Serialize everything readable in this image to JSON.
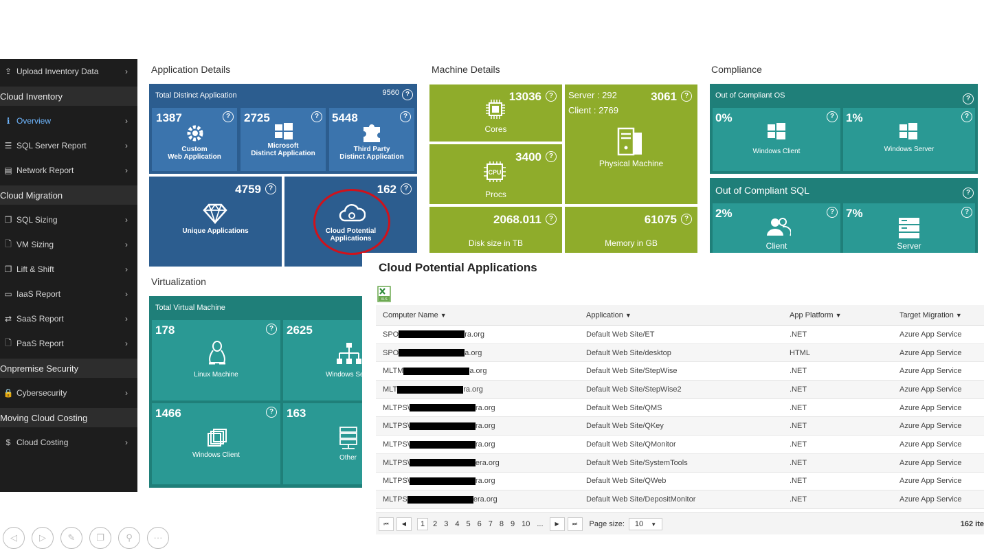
{
  "sidebar": {
    "items": [
      {
        "type": "item",
        "label": "Upload Inventory Data",
        "icon": "upload-icon"
      },
      {
        "type": "section",
        "label": "Cloud Inventory"
      },
      {
        "type": "item",
        "label": "Overview",
        "icon": "info-icon",
        "active": true
      },
      {
        "type": "item",
        "label": "SQL Server Report",
        "icon": "database-icon"
      },
      {
        "type": "item",
        "label": "Network Report",
        "icon": "network-icon"
      },
      {
        "type": "section",
        "label": "Cloud Migration"
      },
      {
        "type": "item",
        "label": "SQL Sizing",
        "icon": "copy-icon"
      },
      {
        "type": "item",
        "label": "VM Sizing",
        "icon": "file-icon"
      },
      {
        "type": "item",
        "label": "Lift & Shift",
        "icon": "copy-icon"
      },
      {
        "type": "item",
        "label": "IaaS Report",
        "icon": "monitor-icon"
      },
      {
        "type": "item",
        "label": "SaaS Report",
        "icon": "exchange-icon"
      },
      {
        "type": "item",
        "label": "PaaS Report",
        "icon": "file-icon"
      },
      {
        "type": "section",
        "label": "Onpremise Security"
      },
      {
        "type": "item",
        "label": "Cybersecurity",
        "icon": "lock-icon"
      },
      {
        "type": "section",
        "label": "Moving Cloud Costing"
      },
      {
        "type": "item",
        "label": "Cloud Costing",
        "icon": "dollar-icon"
      }
    ]
  },
  "app_details": {
    "title": "Application Details",
    "total_label": "Total Distinct Application",
    "total_value": "9560",
    "custom": {
      "value": "1387",
      "label1": "Custom",
      "label2": "Web Application"
    },
    "microsoft": {
      "value": "2725",
      "label1": "Microsoft",
      "label2": "Distinct Application"
    },
    "third_party": {
      "value": "5448",
      "label1": "Third Party",
      "label2": "Distinct Application"
    },
    "unique": {
      "value": "4759",
      "label": "Unique Applications"
    },
    "cloud_potential": {
      "value": "162",
      "label1": "Cloud Potential",
      "label2": "Applications"
    }
  },
  "machine_details": {
    "title": "Machine Details",
    "cores": {
      "value": "13036",
      "label": "Cores"
    },
    "procs": {
      "value": "3400",
      "label": "Procs",
      "chip": "CPU"
    },
    "physical": {
      "value": "3061",
      "server": "Server : 292",
      "client": "Client : 2769",
      "label": "Physical Machine"
    },
    "disk": {
      "value": "2068.011",
      "label": "Disk size in TB"
    },
    "memory": {
      "value": "61075",
      "label": "Memory in GB"
    }
  },
  "compliance": {
    "title": "Compliance",
    "os_label": "Out of Compliant OS",
    "os_client": {
      "value": "0%",
      "label": "Windows Client"
    },
    "os_server": {
      "value": "1%",
      "label": "Windows Server"
    },
    "sql_label": "Out of Compliant SQL",
    "sql_client": {
      "value": "2%",
      "label": "Client"
    },
    "sql_server": {
      "value": "7%",
      "label": "Server"
    }
  },
  "virtualization": {
    "title": "Virtualization",
    "total_label": "Total Virtual Machine",
    "linux": {
      "value": "178",
      "label": "Linux Machine"
    },
    "windows_server": {
      "value": "2625",
      "label": "Windows Se"
    },
    "windows_client": {
      "value": "1466",
      "label": "Windows Client"
    },
    "other": {
      "value": "163",
      "label": "Other"
    }
  },
  "popup": {
    "title": "Cloud Potential Applications",
    "columns": [
      "Computer Name",
      "Application",
      "App Platform",
      "Target Migration"
    ],
    "rows": [
      {
        "cn_pre": "SPO",
        "cn_post": "ra.org",
        "app": "Default Web Site/ET",
        "platform": ".NET",
        "target": "Azure App Service"
      },
      {
        "cn_pre": "SPO",
        "cn_post": "a.org",
        "app": "Default Web Site/desktop",
        "platform": "HTML",
        "target": "Azure App Service"
      },
      {
        "cn_pre": "MLTM",
        "cn_post": "a.org",
        "app": "Default Web Site/StepWise",
        "platform": ".NET",
        "target": "Azure App Service"
      },
      {
        "cn_pre": "MLT",
        "cn_post": "ra.org",
        "app": "Default Web Site/StepWise2",
        "platform": ".NET",
        "target": "Azure App Service"
      },
      {
        "cn_pre": "MLTPS\\",
        "cn_post": "ra.org",
        "app": "Default Web Site/QMS",
        "platform": ".NET",
        "target": "Azure App Service"
      },
      {
        "cn_pre": "MLTPS\\",
        "cn_post": "ra.org",
        "app": "Default Web Site/QKey",
        "platform": ".NET",
        "target": "Azure App Service"
      },
      {
        "cn_pre": "MLTPS\\",
        "cn_post": "ra.org",
        "app": "Default Web Site/QMonitor",
        "platform": ".NET",
        "target": "Azure App Service"
      },
      {
        "cn_pre": "MLTPS\\",
        "cn_post": "era.org",
        "app": "Default Web Site/SystemTools",
        "platform": ".NET",
        "target": "Azure App Service"
      },
      {
        "cn_pre": "MLTPS\\",
        "cn_post": "ra.org",
        "app": "Default Web Site/QWeb",
        "platform": ".NET",
        "target": "Azure App Service"
      },
      {
        "cn_pre": "MLTPS",
        "cn_post": "era.org",
        "app": "Default Web Site/DepositMonitor",
        "platform": ".NET",
        "target": "Azure App Service"
      }
    ],
    "pager": {
      "pages": [
        "1",
        "2",
        "3",
        "4",
        "5",
        "6",
        "7",
        "8",
        "9",
        "10",
        "..."
      ],
      "current": "1",
      "page_size_label": "Page size:",
      "page_size": "10",
      "total": "162 ite"
    }
  },
  "colors": {
    "blue": "#3b74ad",
    "green": "#8fac2b",
    "teal": "#2a9994",
    "sidebar": "#1d1d1d",
    "highlight": "#d0121b"
  }
}
